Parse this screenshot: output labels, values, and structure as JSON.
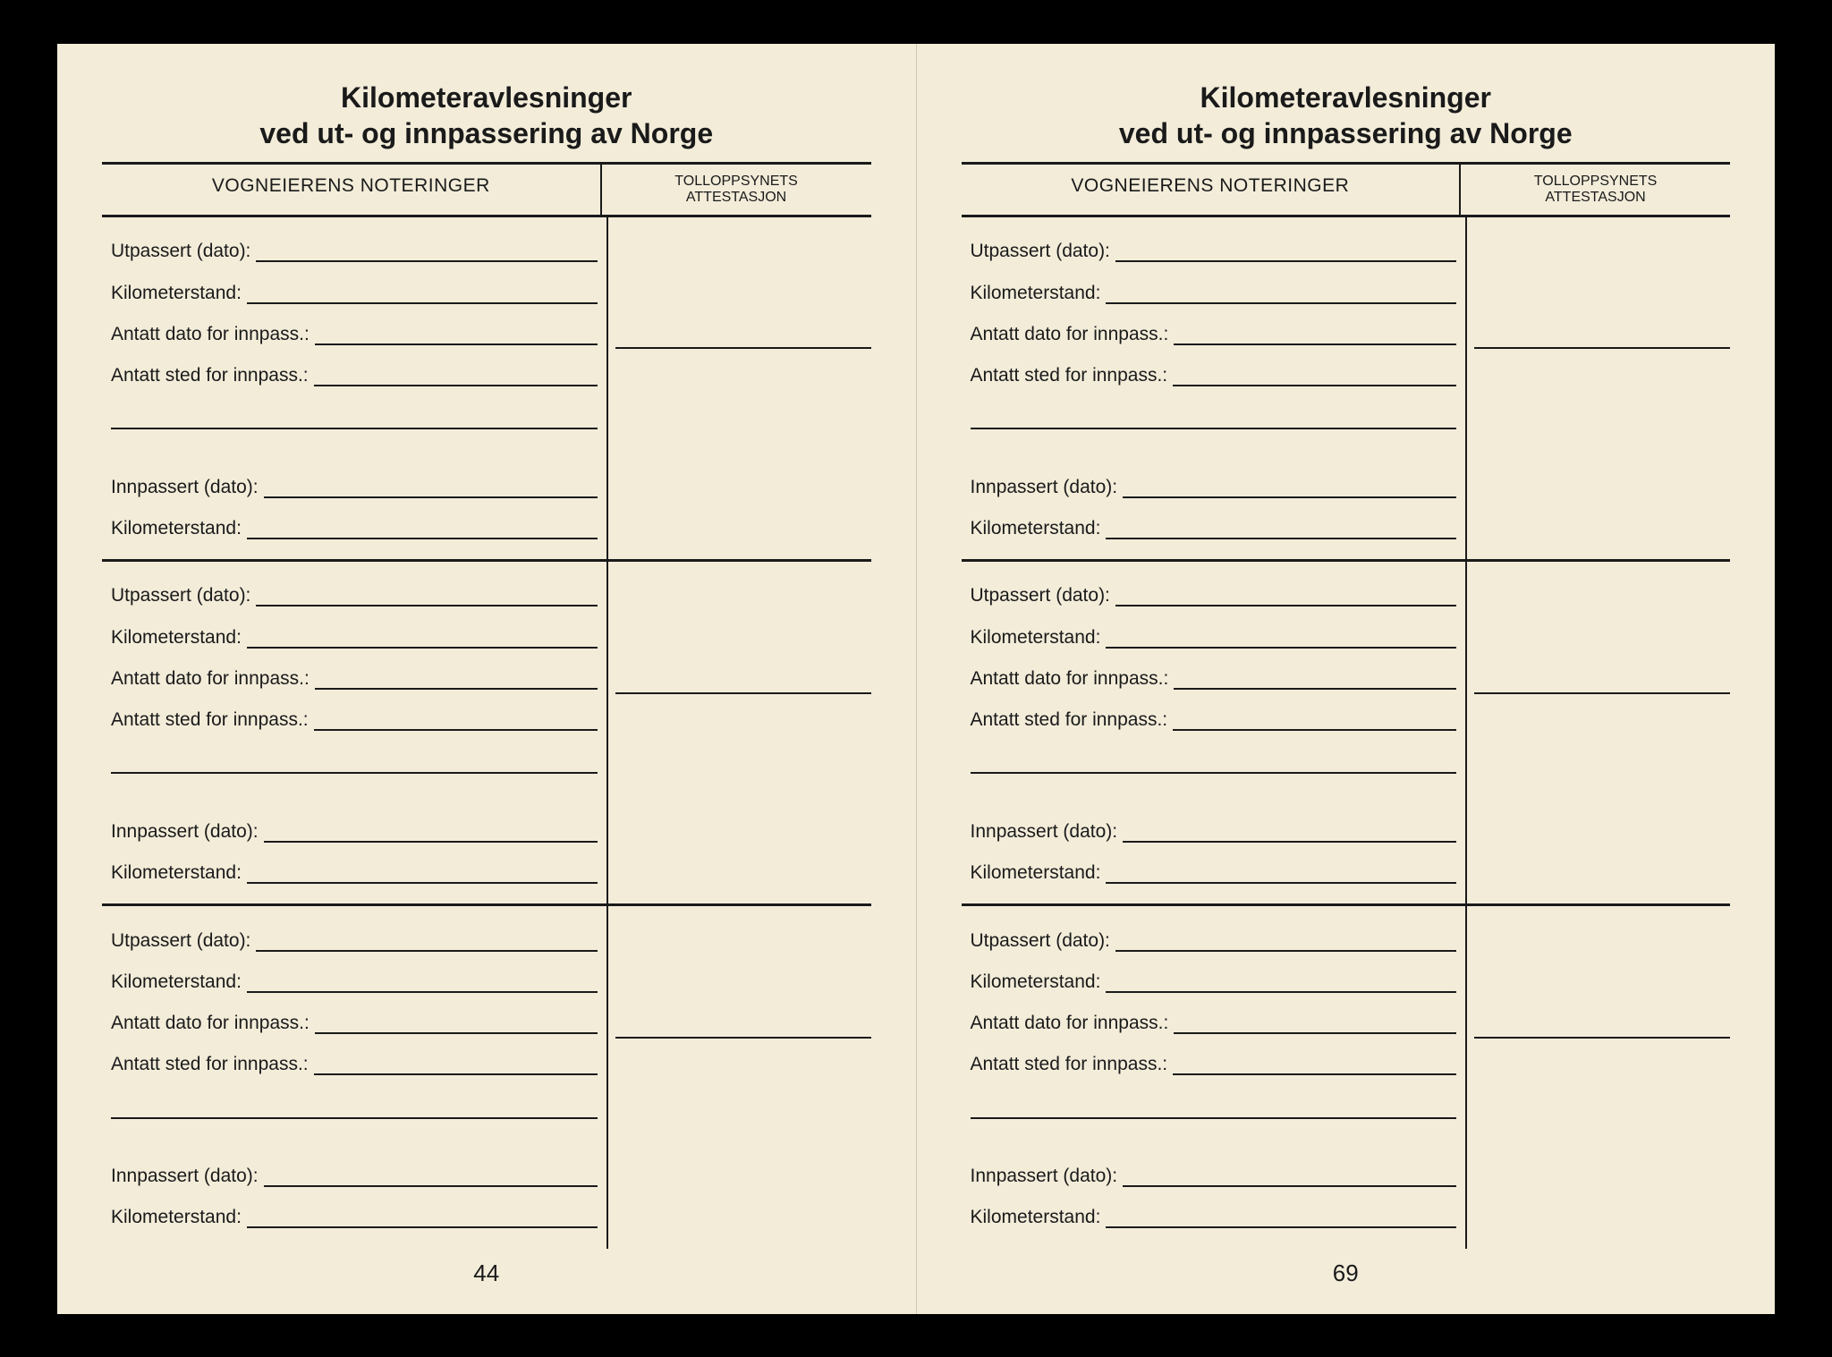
{
  "title_line1": "Kilometeravlesninger",
  "title_line2": "ved ut- og innpassering av Norge",
  "header_left": "VOGNEIERENS NOTERINGER",
  "header_right_line1": "TOLLOPPSYNETS",
  "header_right_line2": "ATTESTASJON",
  "fields": {
    "utpassert": "Utpassert (dato):",
    "km1": "Kilometerstand:",
    "antatt_dato": "Antatt dato for innpass.:",
    "antatt_sted": "Antatt sted for innpass.:",
    "innpassert": "Innpassert (dato):",
    "km2": "Kilometerstand:"
  },
  "page_left_num": "44",
  "page_right_num": "69",
  "colors": {
    "paper": "#f2ecd9",
    "ink": "#1a1a1a",
    "background": "#000000"
  }
}
